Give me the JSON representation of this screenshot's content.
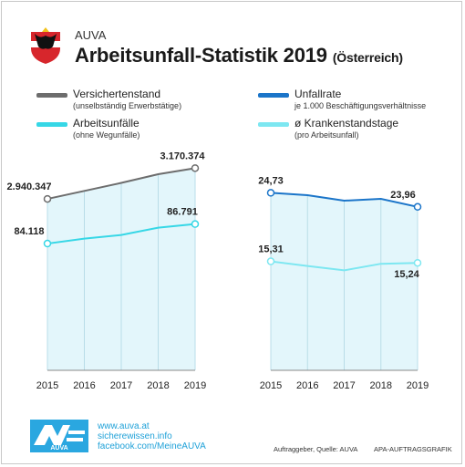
{
  "header": {
    "org": "AUVA",
    "title": "Arbeitsunfall-Statistik 2019",
    "subtitle": "(Österreich)"
  },
  "legend": {
    "versicherte": {
      "label": "Versichertenstand",
      "note": "(unselbständig Erwerbstätige)",
      "color": "#6d6d6d"
    },
    "arbeitsunfaelle": {
      "label": "Arbeitsunfälle",
      "note": "(ohne Wegunfälle)",
      "color": "#36d7e6"
    },
    "unfallrate": {
      "label": "Unfallrate",
      "note": "je 1.000 Beschäftigungsverhältnisse",
      "color": "#1b75c9"
    },
    "krankenstand": {
      "label": "ø Krankenstandstage",
      "note": "(pro Arbeitsunfall)",
      "color": "#7de7f1"
    }
  },
  "chart_data": [
    {
      "type": "line",
      "x": [
        "2015",
        "2016",
        "2017",
        "2018",
        "2019"
      ],
      "series": [
        {
          "name": "Versichertenstand",
          "values": [
            2940347,
            3000000,
            3060000,
            3125000,
            3170374
          ],
          "color": "#6d6d6d"
        },
        {
          "name": "Arbeitsunfälle",
          "values": [
            84118,
            84800,
            85300,
            86300,
            86791
          ],
          "color": "#36d7e6"
        }
      ],
      "data_labels": [
        "2.940.347",
        "3.170.374",
        "84.118",
        "86.791"
      ]
    },
    {
      "type": "line",
      "x": [
        "2015",
        "2016",
        "2017",
        "2018",
        "2019"
      ],
      "series": [
        {
          "name": "Unfallrate",
          "values": [
            24.73,
            24.6,
            24.3,
            24.4,
            23.96
          ],
          "color": "#1b75c9"
        },
        {
          "name": "ø Krankenstandstage",
          "values": [
            15.31,
            15.1,
            14.9,
            15.2,
            15.24
          ],
          "color": "#7de7f1"
        }
      ],
      "data_labels": [
        "24,73",
        "23,96",
        "15,31",
        "15,24"
      ]
    }
  ],
  "footer": {
    "links": [
      "www.auva.at",
      "sicherewissen.info",
      "facebook.com/MeineAUVA"
    ],
    "badge_text": "AUVA",
    "credit": "Auftraggeber, Quelle: AUVA",
    "agency": "APA-AUFTRAGSGRAFIK"
  }
}
